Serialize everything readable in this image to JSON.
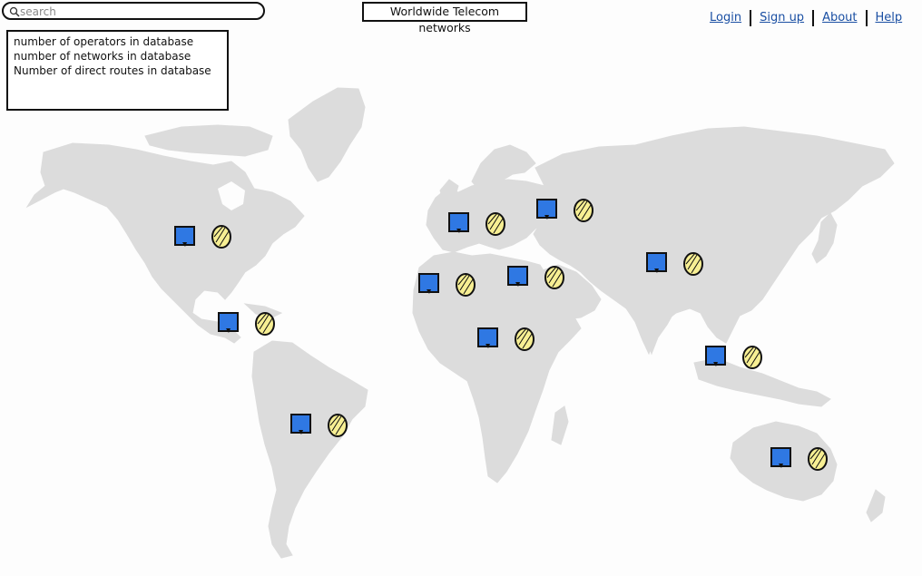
{
  "search": {
    "placeholder": "search"
  },
  "title": "Worldwide Telecom networks",
  "nav": {
    "login": "Login",
    "signup": "Sign up",
    "about": "About",
    "help": "Help"
  },
  "stats": {
    "lines": [
      "number of operators in database",
      "number of networks in database",
      "Number of direct routes in database"
    ]
  },
  "colors": {
    "land": "#dcdcdc",
    "marker_square": "#2f78e3",
    "marker_circle": "#f7ef93",
    "link": "#1a4fa3"
  },
  "markers": [
    {
      "id": "north-america",
      "icons": [
        "network-square-icon",
        "operator-circle-icon"
      ]
    },
    {
      "id": "central-america",
      "icons": [
        "network-square-icon",
        "operator-circle-icon"
      ]
    },
    {
      "id": "south-america",
      "icons": [
        "network-square-icon",
        "operator-circle-icon"
      ]
    },
    {
      "id": "western-europe",
      "icons": [
        "network-square-icon",
        "operator-circle-icon"
      ]
    },
    {
      "id": "eastern-europe",
      "icons": [
        "network-square-icon",
        "operator-circle-icon"
      ]
    },
    {
      "id": "north-africa",
      "icons": [
        "network-square-icon",
        "operator-circle-icon"
      ]
    },
    {
      "id": "middle-east",
      "icons": [
        "network-square-icon",
        "operator-circle-icon"
      ]
    },
    {
      "id": "central-africa",
      "icons": [
        "network-square-icon",
        "operator-circle-icon"
      ]
    },
    {
      "id": "asia",
      "icons": [
        "network-square-icon",
        "operator-circle-icon"
      ]
    },
    {
      "id": "southeast-asia",
      "icons": [
        "network-square-icon",
        "operator-circle-icon"
      ]
    },
    {
      "id": "australia",
      "icons": [
        "network-square-icon",
        "operator-circle-icon"
      ]
    }
  ]
}
